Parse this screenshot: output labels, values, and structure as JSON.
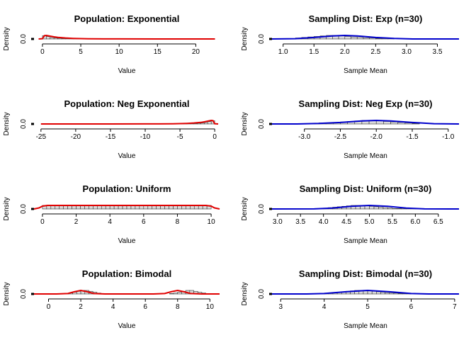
{
  "chart_data": [
    {
      "type": "area",
      "title": "Population: Exponential",
      "xlabel": "Value",
      "ylabel": "Density",
      "xlim": [
        -1.1,
        23.1
      ],
      "xticks": [
        0,
        5,
        10,
        15,
        20
      ],
      "yticks": [
        0.0
      ],
      "line_color": "#e00000",
      "bars": {
        "start": 0,
        "width": 0.5,
        "heights": [
          0.07,
          0.05,
          0.03,
          0.02,
          0.015,
          0.01,
          0.007,
          0.005,
          0.004,
          0.003,
          0.002
        ]
      },
      "curve": {
        "x": [
          -0.5,
          0,
          0.25,
          0.5,
          1,
          1.5,
          2,
          3,
          4,
          5,
          6,
          8,
          10,
          15,
          20,
          22.5
        ],
        "y": [
          0,
          0.005,
          0.07,
          0.075,
          0.06,
          0.045,
          0.033,
          0.02,
          0.012,
          0.007,
          0.004,
          0.002,
          0.001,
          0,
          0,
          0
        ]
      }
    },
    {
      "type": "area",
      "title": "Sampling Dist: Exp (n=30)",
      "xlabel": "Sample Mean",
      "ylabel": "Density",
      "xlim": [
        0.82,
        3.85
      ],
      "xticks": [
        1.0,
        1.5,
        2.0,
        2.5,
        3.0,
        3.5
      ],
      "yticks": [
        0.0
      ],
      "line_color": "#0000cc",
      "bars": {
        "start": 1.1,
        "width": 0.1,
        "heights": [
          0.01,
          0.02,
          0.03,
          0.04,
          0.05,
          0.06,
          0.07,
          0.07,
          0.06,
          0.05,
          0.04,
          0.03,
          0.02,
          0.02,
          0.01,
          0.01,
          0.005
        ]
      },
      "curve": {
        "x": [
          0.82,
          1.2,
          1.5,
          1.8,
          2.0,
          2.2,
          2.5,
          2.8,
          3.1,
          3.85
        ],
        "y": [
          0,
          0.005,
          0.03,
          0.06,
          0.07,
          0.06,
          0.03,
          0.01,
          0,
          0
        ]
      }
    },
    {
      "type": "area",
      "title": "Population: Neg Exponential",
      "xlabel": "Value",
      "ylabel": "Density",
      "xlim": [
        -26,
        0.7
      ],
      "xticks": [
        -25,
        -20,
        -15,
        -10,
        -5,
        0
      ],
      "yticks": [
        0.0
      ],
      "line_color": "#e00000",
      "bars": {
        "start": -5.5,
        "width": 0.5,
        "heights": [
          0.002,
          0.003,
          0.004,
          0.005,
          0.007,
          0.01,
          0.015,
          0.02,
          0.03,
          0.05,
          0.07
        ]
      },
      "curve": {
        "x": [
          -25,
          -20,
          -15,
          -10,
          -8,
          -6,
          -5,
          -4,
          -3,
          -2,
          -1.5,
          -1,
          -0.5,
          -0.25,
          0,
          0.5
        ],
        "y": [
          0,
          0,
          0,
          0.001,
          0.002,
          0.004,
          0.007,
          0.012,
          0.02,
          0.033,
          0.045,
          0.06,
          0.075,
          0.07,
          0.005,
          0
        ]
      }
    },
    {
      "type": "area",
      "title": "Sampling Dist: Neg Exp (n=30)",
      "xlabel": "Sample Mean",
      "ylabel": "Density",
      "xlim": [
        -3.45,
        -0.85
      ],
      "xticks": [
        -3.0,
        -2.5,
        -2.0,
        -1.5,
        -1.0
      ],
      "yticks": [
        0.0
      ],
      "line_color": "#0000cc",
      "bars": {
        "start": -3.1,
        "width": 0.1,
        "heights": [
          0.005,
          0.01,
          0.01,
          0.02,
          0.02,
          0.03,
          0.04,
          0.05,
          0.06,
          0.07,
          0.07,
          0.06,
          0.05,
          0.04,
          0.03,
          0.02,
          0.01
        ]
      },
      "curve": {
        "x": [
          -3.45,
          -3.1,
          -2.8,
          -2.5,
          -2.2,
          -2.0,
          -1.8,
          -1.5,
          -1.2,
          -0.85
        ],
        "y": [
          0,
          0,
          0.01,
          0.03,
          0.06,
          0.07,
          0.06,
          0.03,
          0.005,
          0
        ]
      }
    },
    {
      "type": "area",
      "title": "Population: Uniform",
      "xlabel": "Value",
      "ylabel": "Density",
      "xlim": [
        -0.5,
        10.5
      ],
      "xticks": [
        0,
        2,
        4,
        6,
        8,
        10
      ],
      "yticks": [
        0.0
      ],
      "line_color": "#e00000",
      "bars": {
        "start": 0,
        "width": 0.25,
        "heights": [
          0.1,
          0.1,
          0.1,
          0.1,
          0.1,
          0.1,
          0.1,
          0.1,
          0.1,
          0.1,
          0.1,
          0.1,
          0.1,
          0.1,
          0.1,
          0.1,
          0.1,
          0.1,
          0.1,
          0.1,
          0.1,
          0.1,
          0.1,
          0.1,
          0.1,
          0.1,
          0.1,
          0.1,
          0.1,
          0.1,
          0.1,
          0.1,
          0.1,
          0.1,
          0.1,
          0.1,
          0.1,
          0.1,
          0.1,
          0.1
        ]
      },
      "curve": {
        "x": [
          -0.5,
          -0.2,
          0,
          0.3,
          9.7,
          10,
          10.2,
          10.5
        ],
        "y": [
          0,
          0.03,
          0.08,
          0.1,
          0.1,
          0.08,
          0.03,
          0
        ]
      }
    },
    {
      "type": "area",
      "title": "Sampling Dist: Uniform (n=30)",
      "xlabel": "Sample Mean",
      "ylabel": "Density",
      "xlim": [
        2.88,
        6.95
      ],
      "xticks": [
        3.0,
        3.5,
        4.0,
        4.5,
        5.0,
        5.5,
        6.0,
        6.5
      ],
      "yticks": [
        0.0
      ],
      "line_color": "#0000cc",
      "bars": {
        "start": 3.8,
        "width": 0.1,
        "heights": [
          0.005,
          0.01,
          0.02,
          0.03,
          0.04,
          0.05,
          0.06,
          0.07,
          0.08,
          0.08,
          0.08,
          0.07,
          0.06,
          0.05,
          0.04,
          0.03,
          0.02,
          0.01,
          0.01,
          0.005,
          0.005,
          0.005,
          0.005,
          0.005
        ]
      },
      "curve": {
        "x": [
          2.88,
          3.8,
          4.2,
          4.6,
          5.0,
          5.4,
          5.8,
          6.2,
          6.95
        ],
        "y": [
          0,
          0.002,
          0.02,
          0.06,
          0.08,
          0.06,
          0.02,
          0.002,
          0
        ]
      }
    },
    {
      "type": "area",
      "title": "Population: Bimodal",
      "xlabel": "Value",
      "ylabel": "Density",
      "xlim": [
        -0.9,
        10.6
      ],
      "xticks": [
        0,
        2,
        4,
        6,
        8,
        10
      ],
      "yticks": [
        0.0
      ],
      "line_color": "#e00000",
      "bars": {
        "start": 1.0,
        "width": 0.25,
        "heights": [
          0.01,
          0.02,
          0.04,
          0.06,
          0.08,
          0.08,
          0.06,
          0.04,
          0.02,
          0.01,
          0,
          0,
          0,
          0,
          0,
          0,
          0,
          0,
          0,
          0,
          0,
          0,
          0,
          0,
          0,
          0,
          0.01,
          0.02,
          0.04,
          0.06,
          0.08,
          0.08,
          0.06,
          0.04,
          0.02,
          0.01
        ]
      },
      "curve": {
        "x": [
          -0.9,
          0.5,
          1.2,
          1.6,
          2.0,
          2.4,
          2.8,
          3.5,
          4.5,
          5.5,
          6.5,
          7.2,
          7.6,
          8.0,
          8.4,
          8.8,
          9.5,
          10.6
        ],
        "y": [
          0,
          0,
          0.01,
          0.05,
          0.08,
          0.05,
          0.01,
          0,
          0,
          0,
          0,
          0.01,
          0.05,
          0.08,
          0.05,
          0.01,
          0,
          0
        ]
      }
    },
    {
      "type": "area",
      "title": "Sampling Dist: Bimodal (n=30)",
      "xlabel": "Sample Mean",
      "ylabel": "Density",
      "xlim": [
        2.8,
        7.1
      ],
      "xticks": [
        3,
        4,
        5,
        6,
        7
      ],
      "yticks": [
        0.0
      ],
      "line_color": "#0000cc",
      "bars": {
        "start": 3.7,
        "width": 0.1,
        "heights": [
          0.005,
          0.01,
          0.01,
          0.02,
          0.02,
          0.03,
          0.04,
          0.05,
          0.06,
          0.07,
          0.08,
          0.08,
          0.08,
          0.07,
          0.06,
          0.05,
          0.04,
          0.03,
          0.02,
          0.02,
          0.01,
          0.01,
          0.005
        ]
      },
      "curve": {
        "x": [
          2.8,
          3.6,
          4.0,
          4.5,
          5.0,
          5.5,
          6.0,
          6.4,
          7.1
        ],
        "y": [
          0,
          0,
          0.01,
          0.05,
          0.08,
          0.05,
          0.01,
          0,
          0
        ]
      }
    }
  ]
}
